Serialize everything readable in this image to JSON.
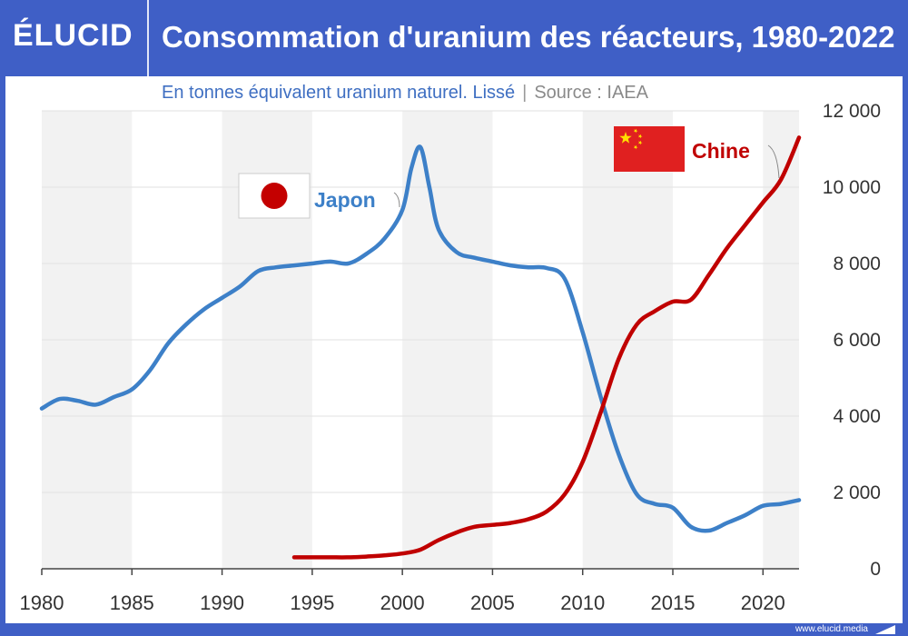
{
  "header": {
    "logo": "ÉLUCID",
    "title": "Consommation d'uranium des réacteurs, 1980-2022"
  },
  "subtitle": {
    "main": "En tonnes équivalent uranium naturel. Lissé",
    "separator": "|",
    "source": "Source : IAEA"
  },
  "footer": {
    "url": "www.elucid.media"
  },
  "colors": {
    "brand": "#3f5fc6",
    "japan": "#3d80c8",
    "china": "#c00000",
    "axis": "#333333"
  },
  "chart_data": {
    "type": "line",
    "title": "Consommation d'uranium des réacteurs, 1980-2022",
    "subtitle": "En tonnes équivalent uranium naturel. Lissé",
    "xlabel": "",
    "ylabel": "",
    "xlim": [
      1980,
      2022
    ],
    "ylim": [
      0,
      12000
    ],
    "x_ticks": [
      1980,
      1985,
      1990,
      1995,
      2000,
      2005,
      2010,
      2015,
      2020
    ],
    "x_tick_labels": [
      "1980",
      "1985",
      "1990",
      "1995",
      "2000",
      "2005",
      "2010",
      "2015",
      "2020"
    ],
    "y_ticks": [
      0,
      2000,
      4000,
      6000,
      8000,
      10000,
      12000
    ],
    "y_tick_labels": [
      "0",
      "2 000",
      "4 000",
      "6 000",
      "8 000",
      "10 000",
      "12 000"
    ],
    "y_axis_side": "right",
    "series": [
      {
        "name": "Japon",
        "label": "Japon",
        "color": "#3d80c8",
        "flag": "japan-flag",
        "x": [
          1980,
          1981,
          1982,
          1983,
          1984,
          1985,
          1986,
          1987,
          1988,
          1989,
          1990,
          1991,
          1992,
          1993,
          1994,
          1995,
          1996,
          1997,
          1998,
          1999,
          2000,
          2000.5,
          2001,
          2001.5,
          2002,
          2003,
          2004,
          2005,
          2006,
          2007,
          2008,
          2009,
          2010,
          2011,
          2012,
          2013,
          2014,
          2015,
          2016,
          2017,
          2018,
          2019,
          2020,
          2021,
          2022
        ],
        "values": [
          4200,
          4450,
          4400,
          4300,
          4500,
          4700,
          5200,
          5900,
          6400,
          6800,
          7100,
          7400,
          7800,
          7900,
          7950,
          8000,
          8050,
          8000,
          8250,
          8650,
          9400,
          10500,
          11050,
          10000,
          8900,
          8300,
          8150,
          8050,
          7950,
          7900,
          7880,
          7600,
          6200,
          4500,
          3000,
          1950,
          1700,
          1600,
          1100,
          1000,
          1200,
          1400,
          1650,
          1700,
          1800
        ]
      },
      {
        "name": "Chine",
        "label": "Chine",
        "color": "#c00000",
        "flag": "china-flag",
        "x": [
          1994,
          1995,
          1996,
          1997,
          1998,
          1999,
          2000,
          2001,
          2002,
          2003,
          2004,
          2005,
          2006,
          2007,
          2008,
          2009,
          2010,
          2011,
          2012,
          2013,
          2014,
          2015,
          2016,
          2017,
          2018,
          2019,
          2020,
          2021,
          2022
        ],
        "values": [
          300,
          300,
          300,
          300,
          320,
          350,
          400,
          500,
          750,
          950,
          1100,
          1150,
          1200,
          1300,
          1500,
          1950,
          2800,
          4100,
          5500,
          6400,
          6750,
          7000,
          7050,
          7700,
          8400,
          9000,
          9600,
          10200,
          11300
        ]
      }
    ],
    "annotations": [
      "Japon",
      "Chine"
    ],
    "legend": "inline labels with flags",
    "grid": "horizontal light gridlines, alternating shaded 5-year bands"
  }
}
